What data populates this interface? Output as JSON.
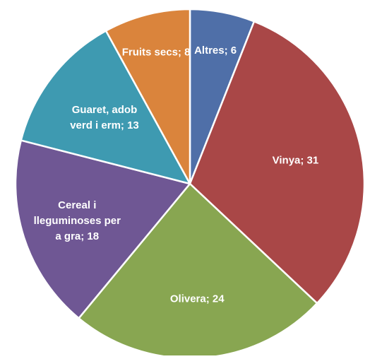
{
  "chart_data": {
    "type": "pie",
    "title": "",
    "slices": [
      {
        "label": "Altres",
        "value": 6,
        "display": "Altres; 6",
        "color": "#4F6FA8"
      },
      {
        "label": "Vinya",
        "value": 31,
        "display": "Vinya; 31",
        "color": "#A94747"
      },
      {
        "label": "Olivera",
        "value": 24,
        "display": "Olivera; 24",
        "color": "#88A651"
      },
      {
        "label": "Cereal i lleguminoses per a gra",
        "value": 18,
        "display": "Cereal i lleguminoses per a gra; 18",
        "color": "#6F5794"
      },
      {
        "label": "Guaret, adob verd i erm",
        "value": 13,
        "display": "Guaret, adob verd i erm; 13",
        "color": "#3E9AB1"
      },
      {
        "label": "Fruits secs",
        "value": 8,
        "display": "Fruits secs; 8",
        "color": "#DA843C"
      }
    ],
    "label_format": "{label}; {value}",
    "legend": "none"
  }
}
